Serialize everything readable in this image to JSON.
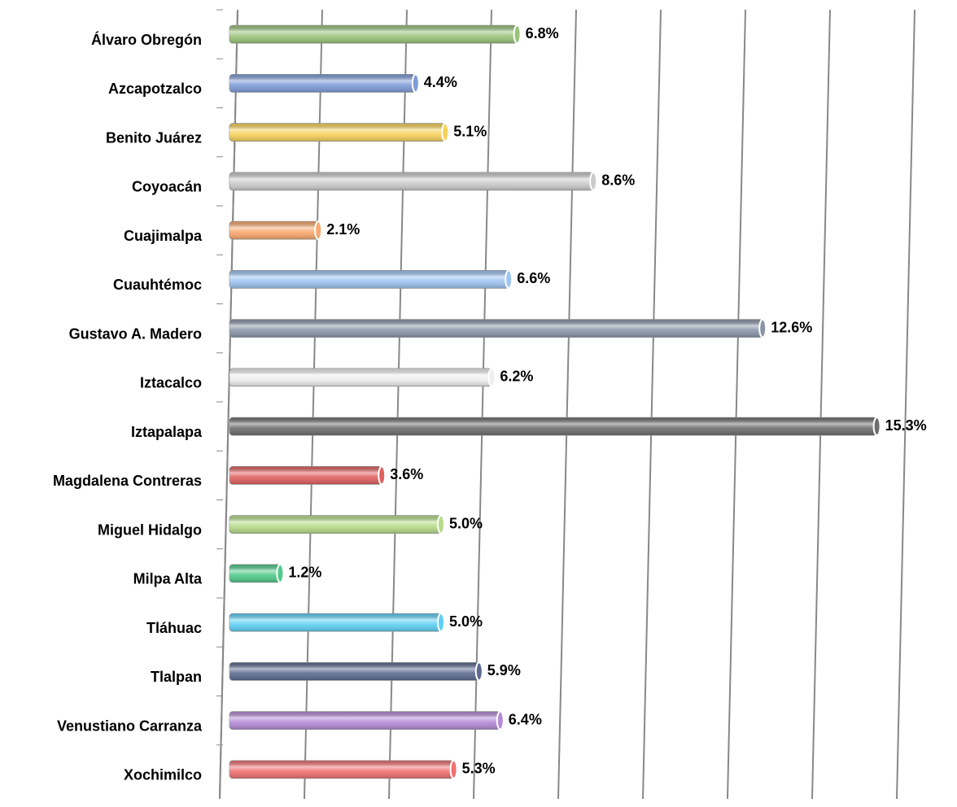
{
  "chart_data": {
    "type": "bar",
    "orientation": "horizontal",
    "categories": [
      "Álvaro Obregón",
      "Azcapotzalco",
      "Benito Juárez",
      "Coyoacán",
      "Cuajimalpa",
      "Cuauhtémoc",
      "Gustavo A. Madero",
      "Iztacalco",
      "Iztapalapa",
      "Magdalena Contreras",
      "Miguel Hidalgo",
      "Milpa Alta",
      "Tláhuac",
      "Tlalpan",
      "Venustiano Carranza",
      "Xochimilco"
    ],
    "values": [
      6.8,
      4.4,
      5.1,
      8.6,
      2.1,
      6.6,
      12.6,
      6.2,
      15.3,
      3.6,
      5.0,
      1.2,
      5.0,
      5.9,
      6.4,
      5.3
    ],
    "value_labels": [
      "6.8%",
      "4.4%",
      "5.1%",
      "8.6%",
      "2.1%",
      "6.6%",
      "12.6%",
      "6.2%",
      "15.3%",
      "3.6%",
      "5.0%",
      "1.2%",
      "5.0%",
      "5.9%",
      "6.4%",
      "5.3%"
    ],
    "colors": [
      "#9bc47a",
      "#7f9cd8",
      "#f7d25a",
      "#cccccc",
      "#f9a86e",
      "#9ec4f0",
      "#8a96a8",
      "#eeeeee",
      "#6e6e6e",
      "#e06060",
      "#b7dc8a",
      "#4fca8a",
      "#5fd0f5",
      "#5c6a90",
      "#b48ad6",
      "#f07070"
    ],
    "xlim": [
      0,
      16
    ],
    "xticks": [
      0,
      2,
      4,
      6,
      8,
      10,
      12,
      14,
      16
    ],
    "grid": true
  }
}
